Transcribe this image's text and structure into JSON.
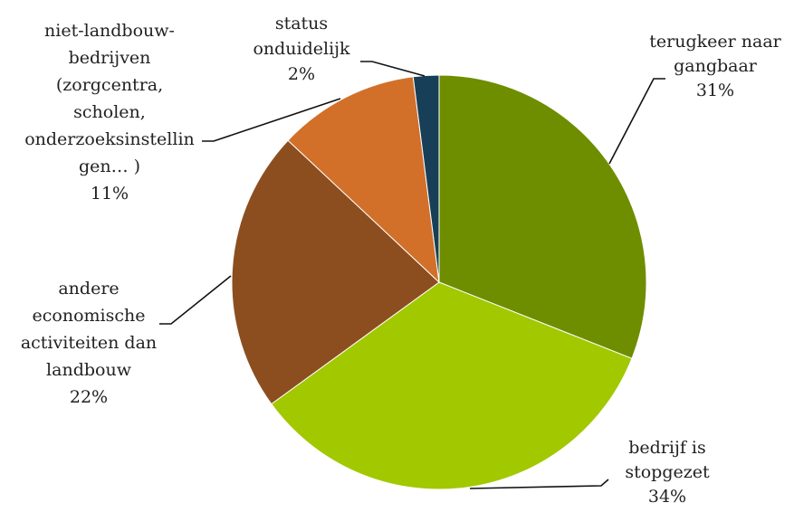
{
  "chart_data": {
    "type": "pie",
    "slices": [
      {
        "key": "gangbaar",
        "lines": [
          "terugkeer naar",
          "gangbaar"
        ],
        "pct_label": "31%",
        "value": 31,
        "color": "#6e8e00"
      },
      {
        "key": "stopgezet",
        "lines": [
          "bedrijf is",
          "stopgezet"
        ],
        "pct_label": "34%",
        "value": 34,
        "color": "#a2c800"
      },
      {
        "key": "andere",
        "lines": [
          "andere",
          "economische",
          "activiteiten dan",
          "landbouw"
        ],
        "pct_label": "22%",
        "value": 22,
        "color": "#8c4e1e"
      },
      {
        "key": "niet_landbouw",
        "lines": [
          "niet-landbouw-",
          "bedrijven",
          "(zorgcentra,",
          "scholen,",
          "onderzoeksinstellin",
          "gen… )"
        ],
        "pct_label": "11%",
        "value": 11,
        "color": "#d2702a"
      },
      {
        "key": "onduidelijk",
        "lines": [
          "status",
          "onduidelijk"
        ],
        "pct_label": "2%",
        "value": 2,
        "color": "#183f58"
      }
    ]
  }
}
